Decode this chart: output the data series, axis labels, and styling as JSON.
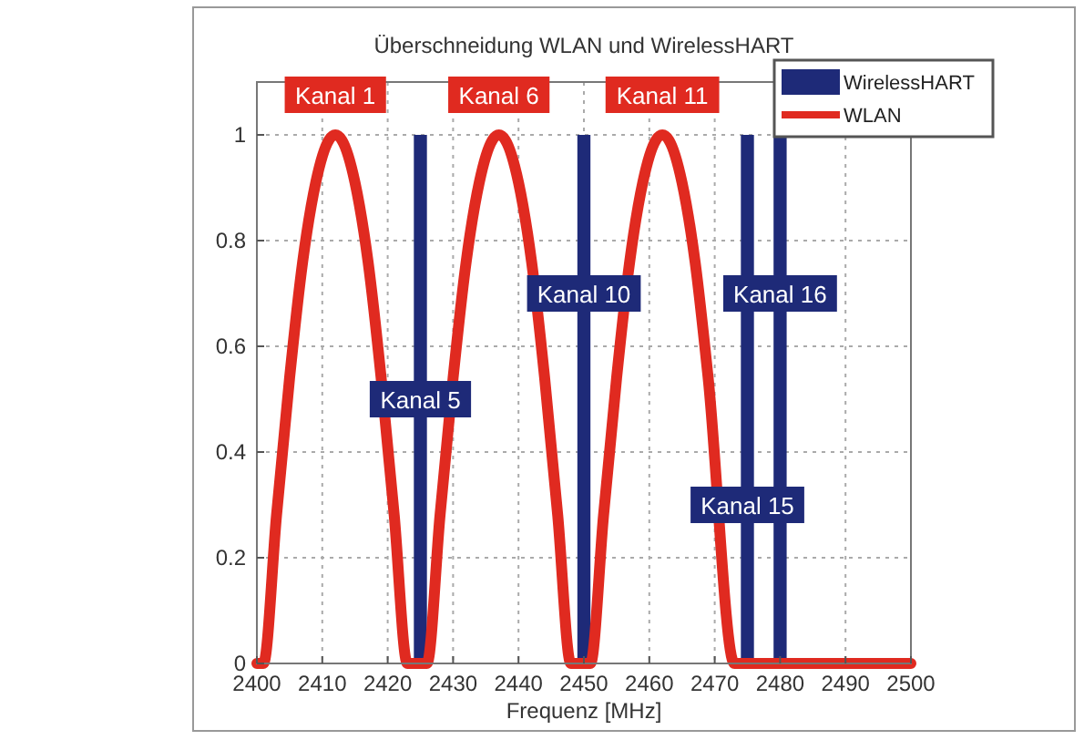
{
  "chart_data": {
    "type": "line",
    "title": "Überschneidung WLAN und WirelessHART",
    "xlabel": "Frequenz [MHz]",
    "xlim": [
      2400,
      2500
    ],
    "xticks": [
      2400,
      2410,
      2420,
      2430,
      2440,
      2450,
      2460,
      2470,
      2480,
      2490,
      2500
    ],
    "ylim": [
      0,
      1.1
    ],
    "yticks": [
      0,
      0.2,
      0.4,
      0.6,
      0.8,
      1
    ],
    "grid": true,
    "legend": "top right",
    "series": [
      {
        "name": "WirelessHART",
        "type": "bar",
        "color": "#1e2a78",
        "x": [
          2425,
          2450,
          2475,
          2480
        ],
        "values": [
          1,
          1,
          1,
          1
        ]
      },
      {
        "name": "WLAN",
        "color": "#e02a20",
        "x": [
          2400,
          2401,
          2403,
          2405,
          2407,
          2409,
          2411,
          2412,
          2413,
          2415,
          2417,
          2419,
          2421,
          2423,
          2426,
          2428,
          2430,
          2432,
          2434,
          2436,
          2437,
          2438,
          2440,
          2442,
          2444,
          2446,
          2448,
          2451,
          2453,
          2455,
          2457,
          2459,
          2461,
          2462,
          2463,
          2465,
          2467,
          2469,
          2471,
          2473,
          2500
        ],
        "values": [
          0,
          0,
          0.28,
          0.54,
          0.76,
          0.91,
          0.99,
          1,
          0.99,
          0.91,
          0.76,
          0.54,
          0.28,
          0,
          0,
          0.28,
          0.54,
          0.76,
          0.91,
          0.99,
          1,
          0.99,
          0.91,
          0.76,
          0.54,
          0.28,
          0,
          0,
          0.28,
          0.54,
          0.76,
          0.91,
          0.99,
          1,
          0.99,
          0.91,
          0.76,
          0.54,
          null,
          0,
          0
        ]
      }
    ],
    "annotations": [
      {
        "text": "Kanal 1",
        "x": 2412,
        "y": 1
      },
      {
        "text": "Kanal 6",
        "x": 2437,
        "y": 1
      },
      {
        "text": "Kanal 11",
        "x": 2462,
        "y": 1
      },
      {
        "text": "Kanal 5",
        "x": 2425,
        "y": 0.5
      },
      {
        "text": "Kanal 10",
        "x": 2450,
        "y": 0.7
      },
      {
        "text": "Kanal 15",
        "x": 2475,
        "y": 0.3
      },
      {
        "text": "Kanal 16",
        "x": 2480,
        "y": 0.7
      }
    ]
  }
}
